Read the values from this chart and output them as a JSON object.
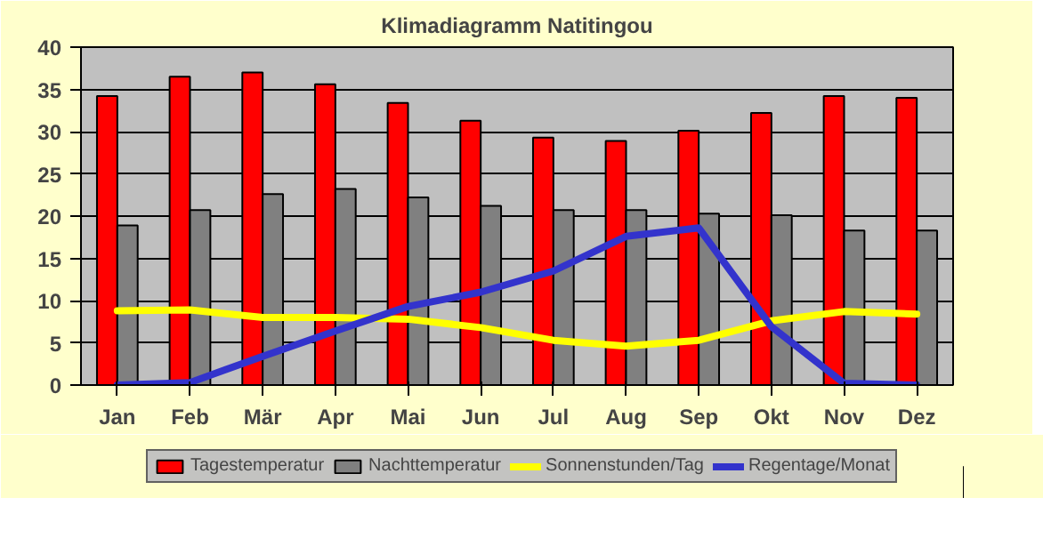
{
  "chart_data": {
    "type": "bar",
    "title": "Klimadiagramm Natitingou",
    "categories": [
      "Jan",
      "Feb",
      "Mär",
      "Apr",
      "Mai",
      "Jun",
      "Jul",
      "Aug",
      "Sep",
      "Okt",
      "Nov",
      "Dez"
    ],
    "series": [
      {
        "name": "Tagestemperatur",
        "color": "#ff0000",
        "values": [
          34.2,
          36.5,
          37.0,
          35.6,
          33.4,
          31.3,
          29.3,
          28.9,
          30.1,
          32.2,
          34.2,
          34.0
        ]
      },
      {
        "name": "Nachttemperatur",
        "color": "#808080",
        "values": [
          18.9,
          20.7,
          22.6,
          23.2,
          22.2,
          21.2,
          20.7,
          20.7,
          20.3,
          20.1,
          18.3,
          18.3
        ]
      },
      {
        "name": "Sonnenstunden/Tag",
        "type": "line",
        "color": "#ffff00",
        "values": [
          8.8,
          8.9,
          8.0,
          8.0,
          7.8,
          6.8,
          5.3,
          4.6,
          5.3,
          7.6,
          8.7,
          8.4
        ]
      },
      {
        "name": "Regentage/Monat",
        "type": "line",
        "color": "#3333cc",
        "values": [
          0,
          0.3,
          3.4,
          6.4,
          9.3,
          11.0,
          13.5,
          17.6,
          18.6,
          6.9,
          0.2,
          0
        ]
      }
    ],
    "ylim": [
      0,
      40
    ],
    "yticks": [
      0,
      5,
      10,
      15,
      20,
      25,
      30,
      35,
      40
    ],
    "grid": "y",
    "legend": "bottom"
  }
}
